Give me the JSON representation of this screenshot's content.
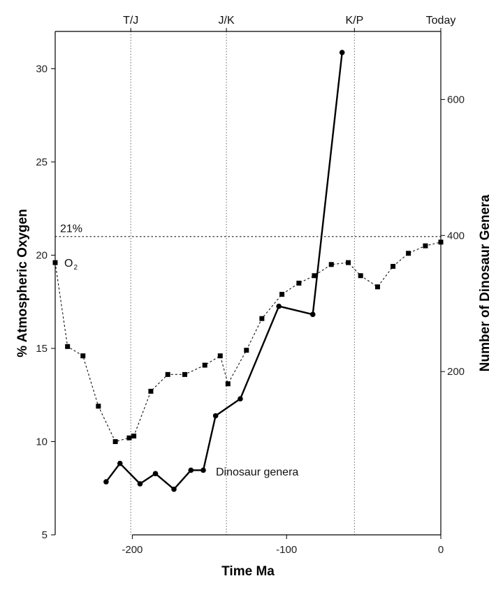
{
  "chart_data": {
    "type": "line",
    "title": "",
    "xlabel": "Time Ma",
    "ylabel": "% Atmospheric Oxygen",
    "y2label": "Number of Dinosaur Genera",
    "xlim": [
      -250,
      0
    ],
    "ylim": [
      5,
      32
    ],
    "y2lim": [
      -40,
      700
    ],
    "x_ticks": [
      -200,
      -100,
      0
    ],
    "y_ticks": [
      5,
      10,
      15,
      20,
      25,
      30
    ],
    "y2_ticks": [
      200,
      400,
      600
    ],
    "x_tick_labels": [
      "-200",
      "-100",
      "0"
    ],
    "y_tick_labels": [
      "5",
      "10",
      "15",
      "20",
      "25",
      "30"
    ],
    "y2_tick_labels": [
      "200",
      "400",
      "600"
    ],
    "top_markers": [
      {
        "x": -201,
        "label": "T/J"
      },
      {
        "x": -139,
        "label": "J/K"
      },
      {
        "x": -56,
        "label": "K/P"
      },
      {
        "x": 0,
        "label": "Today"
      }
    ],
    "reference_line": {
      "y": 21,
      "label": "21%"
    },
    "series": [
      {
        "name": "O2",
        "axis": "left",
        "style": "dotted-line-square-markers",
        "x": [
          -250,
          -242,
          -232,
          -222,
          -211,
          -202,
          -199,
          -188,
          -177,
          -166,
          -153,
          -143,
          -138,
          -126,
          -116,
          -103,
          -92,
          -82,
          -71,
          -60,
          -52,
          -41,
          -31,
          -21,
          -10,
          0
        ],
        "y": [
          19.6,
          15.1,
          14.6,
          11.9,
          10.0,
          10.2,
          10.3,
          12.7,
          13.6,
          13.6,
          14.1,
          14.6,
          13.1,
          14.9,
          16.6,
          17.9,
          18.5,
          18.9,
          19.5,
          19.6,
          18.9,
          18.3,
          19.4,
          20.1,
          20.5,
          20.7
        ]
      },
      {
        "name": "Dinosaur genera",
        "axis": "right",
        "style": "solid-line-circle-markers",
        "x": [
          -217,
          -208,
          -195,
          -185,
          -173,
          -162,
          -154,
          -146,
          -130,
          -105,
          -83,
          -64
        ],
        "y": [
          38,
          65,
          35,
          50,
          27,
          55,
          55,
          135,
          160,
          296,
          284,
          669
        ]
      }
    ],
    "annotations": {
      "o2_main": "O",
      "o2_sub": "2",
      "dinosaur": "Dinosaur genera"
    }
  }
}
